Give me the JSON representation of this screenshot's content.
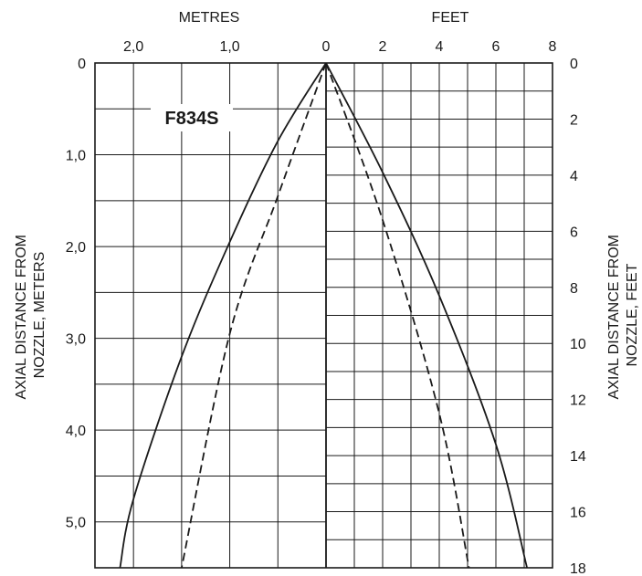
{
  "chart_data": {
    "type": "line",
    "model_label": "F834S",
    "top_left_unit": "METRES",
    "top_right_unit": "FEET",
    "ylabel_left": [
      "AXIAL DISTANCE FROM",
      "NOZZLE, METERS"
    ],
    "ylabel_right": [
      "AXIAL DISTANCE FROM",
      "NOZZLE, FEET"
    ],
    "top_left_ticks": [
      "2,0",
      "1,0",
      "0"
    ],
    "top_right_ticks": [
      "2",
      "4",
      "6",
      "8"
    ],
    "left_ticks": [
      "0",
      "1,0",
      "2,0",
      "3,0",
      "4,0",
      "5,0"
    ],
    "right_ticks": [
      "0",
      "2",
      "4",
      "6",
      "8",
      "10",
      "12",
      "14",
      "16",
      "18"
    ],
    "x_metres_range": [
      0,
      2.4
    ],
    "x_feet_range": [
      0,
      8
    ],
    "y_metres_range": [
      0,
      5.5
    ],
    "y_feet_range": [
      0,
      18
    ],
    "grid": true,
    "series": [
      {
        "side": "left",
        "style": "solid",
        "x_metres": [
          0,
          0.5,
          1.0,
          1.5,
          2.0,
          2.14
        ],
        "y_metres": [
          0,
          0.85,
          1.95,
          3.2,
          4.75,
          5.5
        ]
      },
      {
        "side": "left",
        "style": "dashed",
        "x_metres": [
          0,
          0.5,
          1.0,
          1.5
        ],
        "y_metres": [
          0,
          1.45,
          2.95,
          5.5
        ]
      },
      {
        "side": "right",
        "style": "solid",
        "x_feet": [
          0,
          2,
          4,
          6,
          7.1
        ],
        "y_feet": [
          0,
          3.9,
          8.3,
          13.6,
          18
        ]
      },
      {
        "side": "right",
        "style": "dashed",
        "x_feet": [
          0,
          2,
          4,
          5.05
        ],
        "y_feet": [
          0,
          5.6,
          12.5,
          18
        ]
      }
    ]
  }
}
